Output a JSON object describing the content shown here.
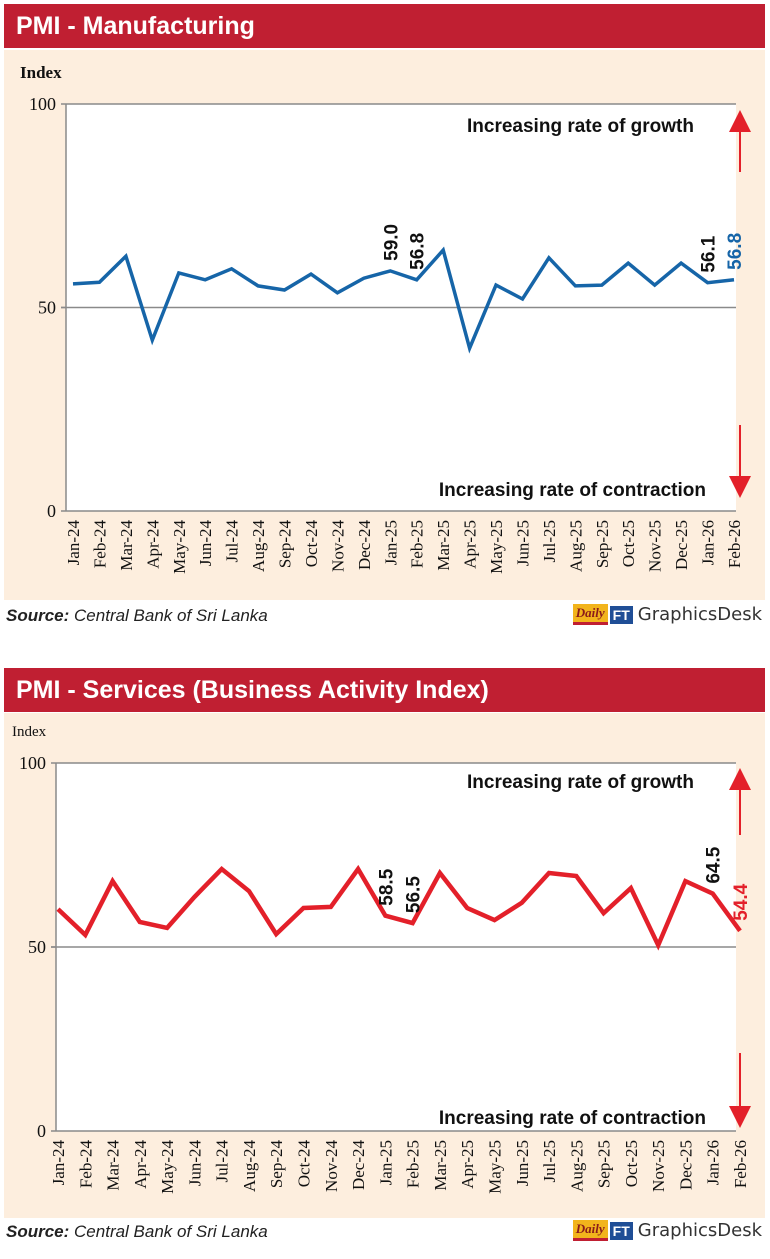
{
  "chart_data": [
    {
      "type": "line",
      "title": "PMI - Manufacturing",
      "ylabel": "Index",
      "xlabel": "",
      "ylim": [
        0,
        100
      ],
      "yticks": [
        "0",
        "50",
        "100"
      ],
      "reference_line": 50,
      "categories": [
        "Jan-24",
        "Feb-24",
        "Mar-24",
        "Apr-24",
        "May-24",
        "Jun-24",
        "Jul-24",
        "Aug-24",
        "Sep-24",
        "Oct-24",
        "Nov-24",
        "Dec-24",
        "Jan-25",
        "Feb-25",
        "Mar-25",
        "Apr-25",
        "May-25",
        "Jun-25",
        "Jul-25",
        "Aug-25",
        "Sep-25",
        "Oct-25",
        "Nov-25",
        "Dec-25",
        "Jan-26",
        "Feb-26"
      ],
      "series": [
        {
          "name": "PMI Manufacturing",
          "color": "#1665a8",
          "values": [
            55.8,
            56.2,
            62.6,
            42.0,
            58.5,
            56.8,
            59.5,
            55.3,
            54.3,
            58.2,
            53.6,
            57.2,
            59.0,
            56.8,
            64.1,
            40.0,
            55.5,
            52.1,
            62.2,
            55.3,
            55.5,
            60.9,
            55.5,
            60.9,
            56.1,
            56.8
          ]
        }
      ],
      "data_labels": [
        {
          "category": "Jan-25",
          "text": "59.0",
          "color": "#111111"
        },
        {
          "category": "Feb-25",
          "text": "56.8",
          "color": "#111111"
        },
        {
          "category": "Jan-26",
          "text": "56.1",
          "color": "#111111"
        },
        {
          "category": "Feb-26",
          "text": "56.8",
          "color": "#1665a8"
        }
      ],
      "annotations": {
        "growth": "Increasing rate of growth",
        "contraction": "Increasing rate of contraction"
      },
      "grid": false
    },
    {
      "type": "line",
      "title": "PMI - Services (Business Activity Index)",
      "ylabel": "Index",
      "xlabel": "",
      "ylim": [
        0,
        100
      ],
      "yticks": [
        "0",
        "50",
        "100"
      ],
      "reference_line": 50,
      "categories": [
        "Jan-24",
        "Feb-24",
        "Mar-24",
        "Apr-24",
        "May-24",
        "Jun-24",
        "Jul-24",
        "Aug-24",
        "Sep-24",
        "Oct-24",
        "Nov-24",
        "Dec-24",
        "Jan-25",
        "Feb-25",
        "Mar-25",
        "Apr-25",
        "May-25",
        "Jun-25",
        "Jul-25",
        "Aug-25",
        "Sep-25",
        "Oct-25",
        "Nov-25",
        "Dec-25",
        "Jan-26",
        "Feb-26"
      ],
      "series": [
        {
          "name": "PMI Services",
          "color": "#e3202a",
          "values": [
            60.3,
            53.3,
            67.9,
            56.8,
            55.2,
            63.6,
            71.2,
            65.2,
            53.5,
            60.6,
            60.9,
            71.2,
            58.5,
            56.5,
            70.1,
            60.6,
            57.3,
            62.0,
            70.1,
            69.3,
            59.2,
            66.0,
            50.5,
            67.9,
            64.5,
            54.4
          ]
        }
      ],
      "data_labels": [
        {
          "category": "Jan-25",
          "text": "58.5",
          "color": "#111111"
        },
        {
          "category": "Feb-25",
          "text": "56.5",
          "color": "#111111"
        },
        {
          "category": "Jan-26",
          "text": "64.5",
          "color": "#111111"
        },
        {
          "category": "Feb-26",
          "text": "54.4",
          "color": "#e3202a"
        }
      ],
      "annotations": {
        "growth": "Increasing rate of growth",
        "contraction": "Increasing rate of contraction"
      },
      "grid": false
    }
  ],
  "footer": {
    "source_label": "Source:",
    "source_text": "Central Bank of Sri Lanka",
    "logo_daily": "Daily",
    "logo_ft": "FT",
    "logo_text": "GraphicsDesk"
  },
  "colors": {
    "title_bar": "#c01f32",
    "arrow": "#e3202a",
    "background": "#fdeede"
  }
}
